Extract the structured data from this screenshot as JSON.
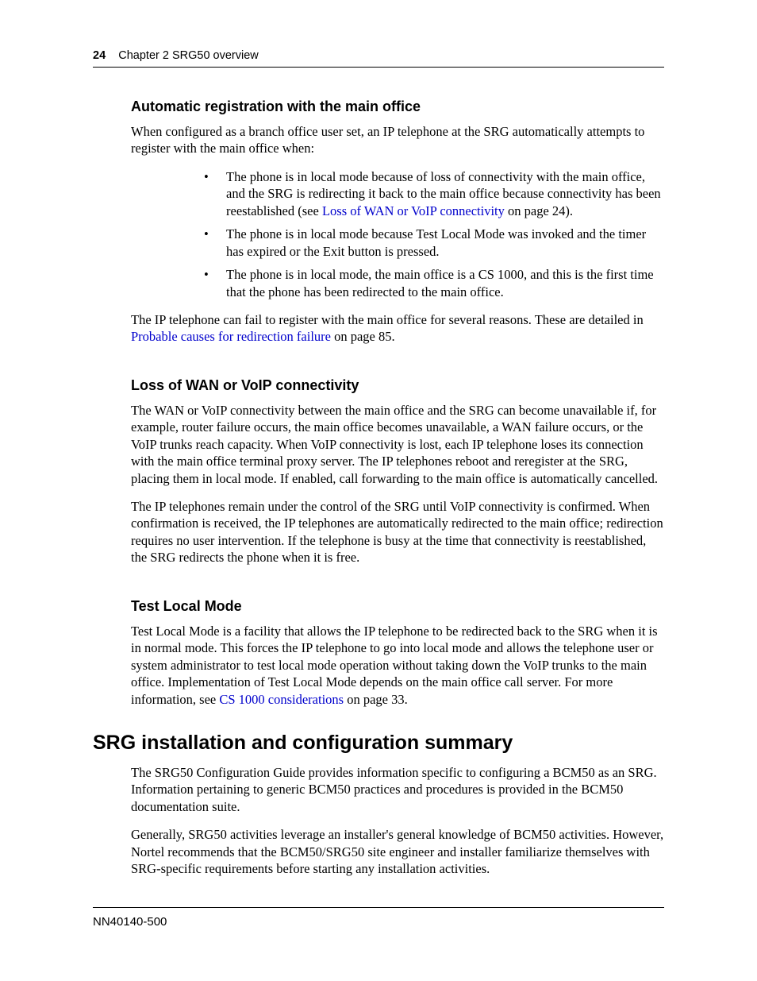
{
  "colors": {
    "text": "#000000",
    "link": "#0000cc",
    "background": "#ffffff",
    "rule": "#000000"
  },
  "typography": {
    "body_family": "Times New Roman",
    "heading_family": "Helvetica",
    "body_size_pt": 12,
    "h3_size_pt": 13,
    "h2_size_pt": 19,
    "header_size_pt": 11,
    "footer_size_pt": 11
  },
  "header": {
    "page_number": "24",
    "chapter": "Chapter 2  SRG50 overview"
  },
  "section_auto": {
    "heading": "Automatic registration with the main office",
    "intro": "When configured as a branch office user set, an IP telephone at the SRG automatically attempts to register with the main office when:",
    "bullets": {
      "b1_pre": "The phone is in local mode because of loss of connectivity with the main office, and the SRG is redirecting it back to the main office because connectivity has been reestablished (see ",
      "b1_link": "Loss of WAN or VoIP connectivity",
      "b1_post": " on page 24).",
      "b2": "The phone is in local mode because Test Local Mode was invoked and the timer has expired or the Exit button is pressed.",
      "b3": "The phone is in local mode, the main office is a CS 1000, and this is the first time that the phone has been redirected to the main office."
    },
    "outro_pre": "The IP telephone can fail to register with the main office for several reasons. These are detailed in ",
    "outro_link": "Probable causes for redirection failure",
    "outro_post": " on page 85."
  },
  "section_loss": {
    "heading": "Loss of WAN or VoIP connectivity",
    "p1": "The WAN or VoIP connectivity between the main office and the SRG can become unavailable if, for example, router failure occurs, the main office becomes unavailable, a WAN failure occurs, or the VoIP trunks reach capacity. When VoIP connectivity is lost, each IP telephone loses its connection with the main office terminal proxy server. The IP telephones reboot and reregister at the SRG, placing them in local mode. If enabled, call forwarding to the main office is automatically cancelled.",
    "p2": "The IP telephones remain under the control of the SRG until VoIP connectivity is confirmed. When confirmation is received, the IP telephones are automatically redirected to the main office; redirection requires no user intervention. If the telephone is busy at the time that connectivity is reestablished, the SRG redirects the phone when it is free."
  },
  "section_test": {
    "heading": "Test Local Mode",
    "p1_pre": "Test Local Mode is a facility that allows the IP telephone to be redirected back to the SRG when it is in normal mode. This forces the IP telephone to go into local mode and allows the telephone user or system administrator to test local mode operation without taking down the VoIP trunks to the main office. Implementation of Test Local Mode depends on the main office call server. For more information, see ",
    "p1_link": "CS 1000 considerations",
    "p1_post": " on page 33."
  },
  "section_srg": {
    "heading": "SRG installation and configuration summary",
    "p1": "The SRG50 Configuration Guide provides information specific to configuring a BCM50 as an SRG. Information pertaining to generic BCM50 practices and procedures is provided in the BCM50 documentation suite.",
    "p2": "Generally, SRG50 activities leverage an installer's general knowledge of BCM50 activities. However, Nortel recommends that the BCM50/SRG50 site engineer and installer familiarize themselves with SRG-specific requirements before starting any installation activities."
  },
  "footer": {
    "docnum": "NN40140-500"
  }
}
